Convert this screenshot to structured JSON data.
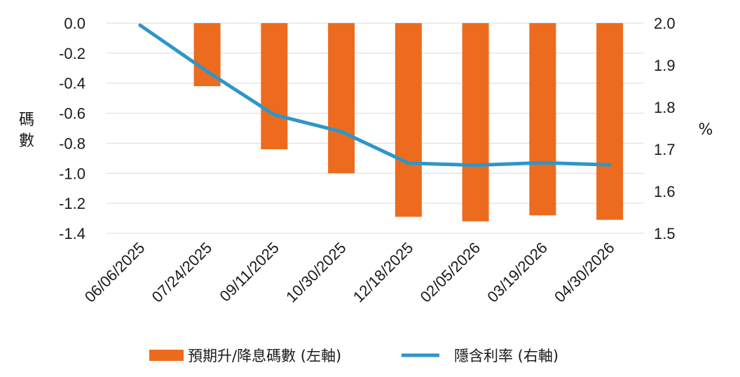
{
  "chart_data": {
    "type": "bar+line",
    "categories": [
      "06/06/2025",
      "07/24/2025",
      "09/11/2025",
      "10/30/2025",
      "12/18/2025",
      "02/05/2026",
      "03/19/2026",
      "04/30/2026"
    ],
    "series": [
      {
        "name": "預期升/降息碼數 (左軸)",
        "type": "bar",
        "axis": "left",
        "color": "#ED6B1E",
        "values": [
          0.0,
          -0.42,
          -0.84,
          -1.0,
          -1.29,
          -1.32,
          -1.28,
          -1.31
        ]
      },
      {
        "name": "隱含利率 (右軸)",
        "type": "line",
        "axis": "right",
        "color": "#2E96C8",
        "values": [
          1.995,
          1.885,
          1.782,
          1.742,
          1.667,
          1.662,
          1.668,
          1.663
        ]
      }
    ],
    "y_left": {
      "label": "碼數",
      "ylim": [
        -1.4,
        0.0
      ],
      "ticks": [
        "0.0",
        "-0.2",
        "-0.4",
        "-0.6",
        "-0.8",
        "-1.0",
        "-1.2",
        "-1.4"
      ]
    },
    "y_right": {
      "label": "%",
      "ylim": [
        1.5,
        2.0
      ],
      "ticks": [
        "2.0",
        "1.9",
        "1.8",
        "1.7",
        "1.6",
        "1.5"
      ]
    },
    "grid": true,
    "legend_position": "bottom"
  }
}
